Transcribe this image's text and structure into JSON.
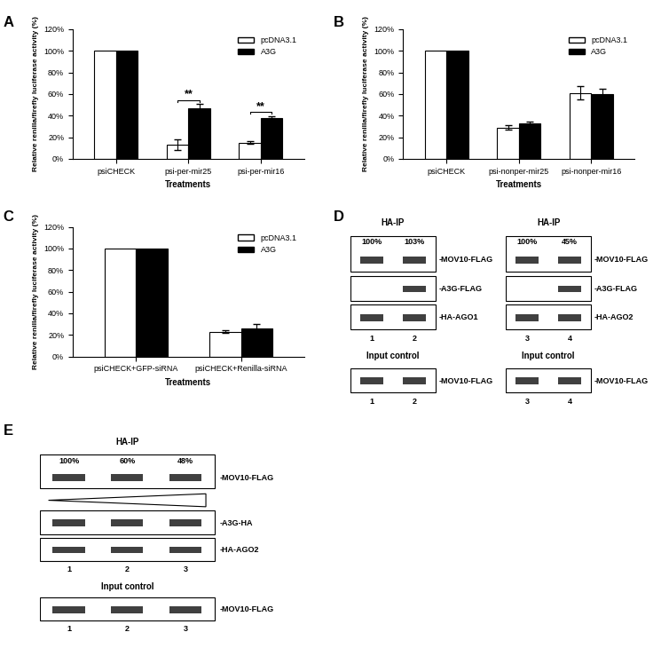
{
  "chart_data": [
    {
      "type": "bar",
      "label": "A",
      "xlabel": "Treatments",
      "ylabel": "Relative renilla/firefly luciferase activity (%)",
      "categories": [
        "psiCHECK",
        "psi-per-mir25",
        "psi-per-mir16"
      ],
      "series": [
        {
          "name": "pcDNA3.1",
          "color": "#ffffff",
          "values": [
            100,
            13,
            15
          ],
          "errors": [
            null,
            5,
            1.5
          ]
        },
        {
          "name": "A3G",
          "color": "#000000",
          "values": [
            100,
            47,
            38
          ],
          "errors": [
            null,
            3.5,
            1.5
          ]
        }
      ],
      "ylim": [
        0,
        120
      ],
      "yticks": [
        {
          "value": 0,
          "label": "0%"
        },
        {
          "value": 20,
          "label": "20%"
        },
        {
          "value": 40,
          "label": "40%"
        },
        {
          "value": 60,
          "label": "60%"
        },
        {
          "value": 80,
          "label": "80%"
        },
        {
          "value": 100,
          "label": "100%"
        },
        {
          "value": 120,
          "label": "120%"
        }
      ],
      "legend": "upper right",
      "annotations": [
        {
          "text": "**",
          "category": "psi-per-mir25"
        },
        {
          "text": "**",
          "category": "psi-per-mir16"
        }
      ]
    },
    {
      "type": "bar",
      "label": "B",
      "xlabel": "Treatments",
      "ylabel": "Relative renilla/firefly luciferase activity (%)",
      "categories": [
        "psiCHECK",
        "psi-nonper-mir25",
        "psi-nonper-mir16"
      ],
      "series": [
        {
          "name": "pcDNA3.1",
          "color": "#ffffff",
          "values": [
            100,
            29,
            61
          ],
          "errors": [
            null,
            2,
            6
          ]
        },
        {
          "name": "A3G",
          "color": "#000000",
          "values": [
            100,
            33,
            60
          ],
          "errors": [
            null,
            1,
            5
          ]
        }
      ],
      "ylim": [
        0,
        120
      ],
      "yticks": [
        {
          "value": 0,
          "label": "0%"
        },
        {
          "value": 20,
          "label": "20%"
        },
        {
          "value": 40,
          "label": "40%"
        },
        {
          "value": 60,
          "label": "60%"
        },
        {
          "value": 80,
          "label": "80%"
        },
        {
          "value": 100,
          "label": "100%"
        },
        {
          "value": 120,
          "label": "120%"
        }
      ],
      "legend": "upper right"
    },
    {
      "type": "bar",
      "label": "C",
      "xlabel": "Treatments",
      "ylabel": "Relative renilla/firefly luciferase activity (%)",
      "categories": [
        "psiCHECK+GFP-siRNA",
        "psiCHECK+Renilla-siRNA"
      ],
      "series": [
        {
          "name": "pcDNA3.1",
          "color": "#ffffff",
          "values": [
            100,
            23
          ],
          "errors": [
            null,
            1.5
          ]
        },
        {
          "name": "A3G",
          "color": "#000000",
          "values": [
            100,
            26
          ],
          "errors": [
            null,
            4
          ]
        }
      ],
      "ylim": [
        0,
        120
      ],
      "yticks": [
        {
          "value": 0,
          "label": "0%"
        },
        {
          "value": 20,
          "label": "20%"
        },
        {
          "value": 40,
          "label": "40%"
        },
        {
          "value": 60,
          "label": "60%"
        },
        {
          "value": 80,
          "label": "80%"
        },
        {
          "value": 100,
          "label": "100%"
        },
        {
          "value": 120,
          "label": "120%"
        }
      ],
      "legend": "upper right"
    }
  ],
  "blots": [
    {
      "label": "D",
      "groups": [
        {
          "header": "HA-IP",
          "percentages": [
            "100%",
            "103%"
          ],
          "lanes": [
            "1",
            "2"
          ],
          "rows": [
            {
              "label": "-MOV10-FLAG",
              "present": [
                true,
                true
              ]
            },
            {
              "label": "-A3G-FLAG",
              "present": [
                false,
                true
              ]
            },
            {
              "label": "-HA-AGO1",
              "present": [
                true,
                true
              ]
            }
          ],
          "input_title": "Input control",
          "input_rows": [
            {
              "label": "-MOV10-FLAG",
              "present": [
                true,
                true
              ]
            }
          ]
        },
        {
          "header": "HA-IP",
          "percentages": [
            "100%",
            "45%"
          ],
          "lanes": [
            "3",
            "4"
          ],
          "rows": [
            {
              "label": "-MOV10-FLAG",
              "present": [
                true,
                true
              ]
            },
            {
              "label": "-A3G-FLAG",
              "present": [
                false,
                true
              ]
            },
            {
              "label": "-HA-AGO2",
              "present": [
                true,
                true
              ]
            }
          ],
          "input_title": "Input control",
          "input_rows": [
            {
              "label": "-MOV10-FLAG",
              "present": [
                true,
                true
              ]
            }
          ]
        }
      ]
    },
    {
      "label": "E",
      "groups": [
        {
          "header": "HA-IP",
          "percentages": [
            "100%",
            "60%",
            "48%"
          ],
          "lanes": [
            "1",
            "2",
            "3"
          ],
          "rows": [
            {
              "label": "-MOV10-FLAG",
              "present": [
                true,
                true,
                true
              ]
            },
            {
              "label": "-A3G-HA",
              "present": [
                true,
                true,
                true
              ]
            },
            {
              "label": "-HA-AGO2",
              "present": [
                true,
                true,
                true
              ]
            }
          ],
          "input_title": "Input control",
          "input_rows": [
            {
              "label": "-MOV10-FLAG",
              "present": [
                true,
                true,
                true
              ]
            }
          ]
        }
      ]
    }
  ]
}
